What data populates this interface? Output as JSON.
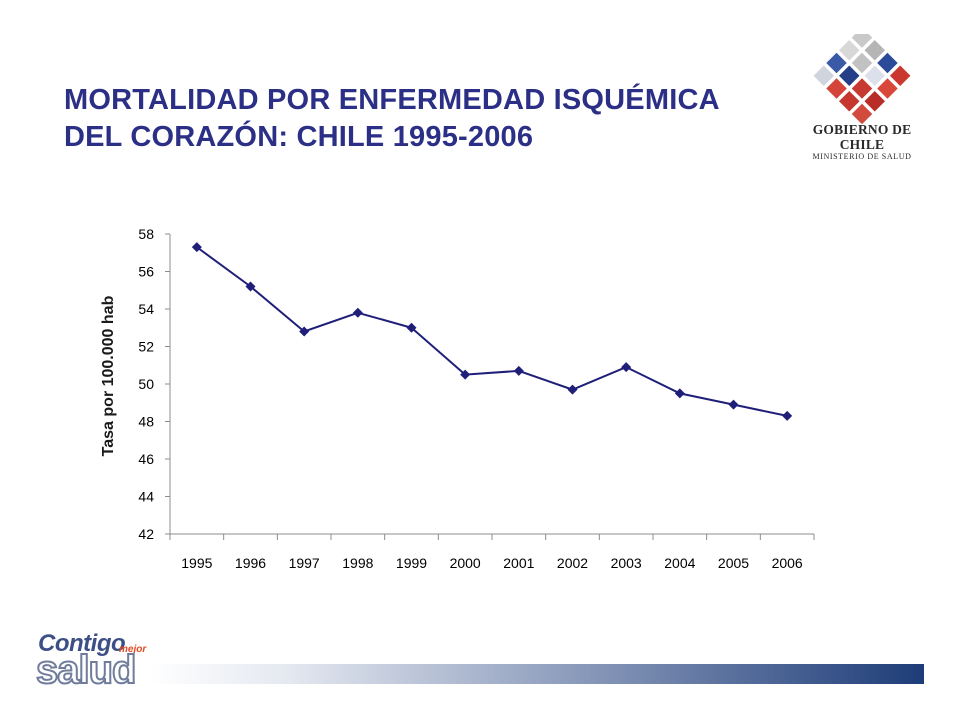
{
  "header": {
    "title_line1": "MORTALIDAD POR ENFERMEDAD ISQUÉMICA",
    "title_line2": "DEL CORAZÓN: CHILE 1995-2006"
  },
  "gov_logo": {
    "line1": "GOBIERNO DE CHILE",
    "line2": "MINISTERIO DE SALUD"
  },
  "footer_logo": {
    "word1": "Contigo",
    "word2": "mejor",
    "word3": "salud"
  },
  "colors": {
    "title": "#2b2f86",
    "series": "#1f1f7a",
    "axis": "#8c8c8c",
    "footer_bar_end": "#1d3c78"
  },
  "chart_data": {
    "type": "line",
    "title": "",
    "xlabel": "",
    "ylabel": "Tasa por 100.000 hab",
    "categories": [
      "1995",
      "1996",
      "1997",
      "1998",
      "1999",
      "2000",
      "2001",
      "2002",
      "2003",
      "2004",
      "2005",
      "2006"
    ],
    "values": [
      57.3,
      55.2,
      52.8,
      53.8,
      53.0,
      50.5,
      50.7,
      49.7,
      50.9,
      49.5,
      48.9,
      48.3
    ],
    "ylim": [
      42,
      58
    ],
    "yticks": [
      42,
      44,
      46,
      48,
      50,
      52,
      54,
      56,
      58
    ],
    "marker": "diamond",
    "grid": false,
    "legend": "none"
  }
}
